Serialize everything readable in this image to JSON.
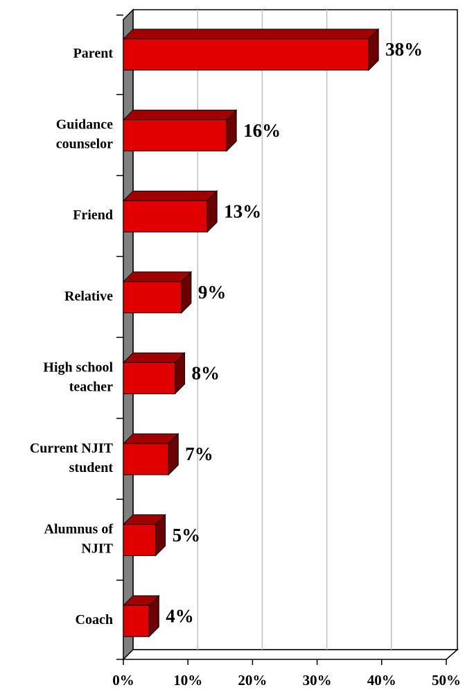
{
  "chart_data": {
    "type": "bar",
    "orientation": "horizontal",
    "categories": [
      "Parent",
      "Guidance\ncounselor",
      "Friend",
      "Relative",
      "High school\nteacher",
      "Current NJIT\nstudent",
      "Alumnus of\nNJIT",
      "Coach"
    ],
    "values": [
      38,
      16,
      13,
      9,
      8,
      7,
      5,
      4
    ],
    "value_labels": [
      "38%",
      "16%",
      "13%",
      "9%",
      "8%",
      "7%",
      "5%",
      "4%"
    ],
    "color": "#e00000",
    "xlim": [
      0,
      50
    ],
    "xticks": [
      {
        "value": 0,
        "label": "0%"
      },
      {
        "value": 10,
        "label": "10%"
      },
      {
        "value": 20,
        "label": "20%"
      },
      {
        "value": 30,
        "label": "30%"
      },
      {
        "value": 40,
        "label": "40%"
      },
      {
        "value": 50,
        "label": "50%"
      }
    ],
    "grid": true
  }
}
